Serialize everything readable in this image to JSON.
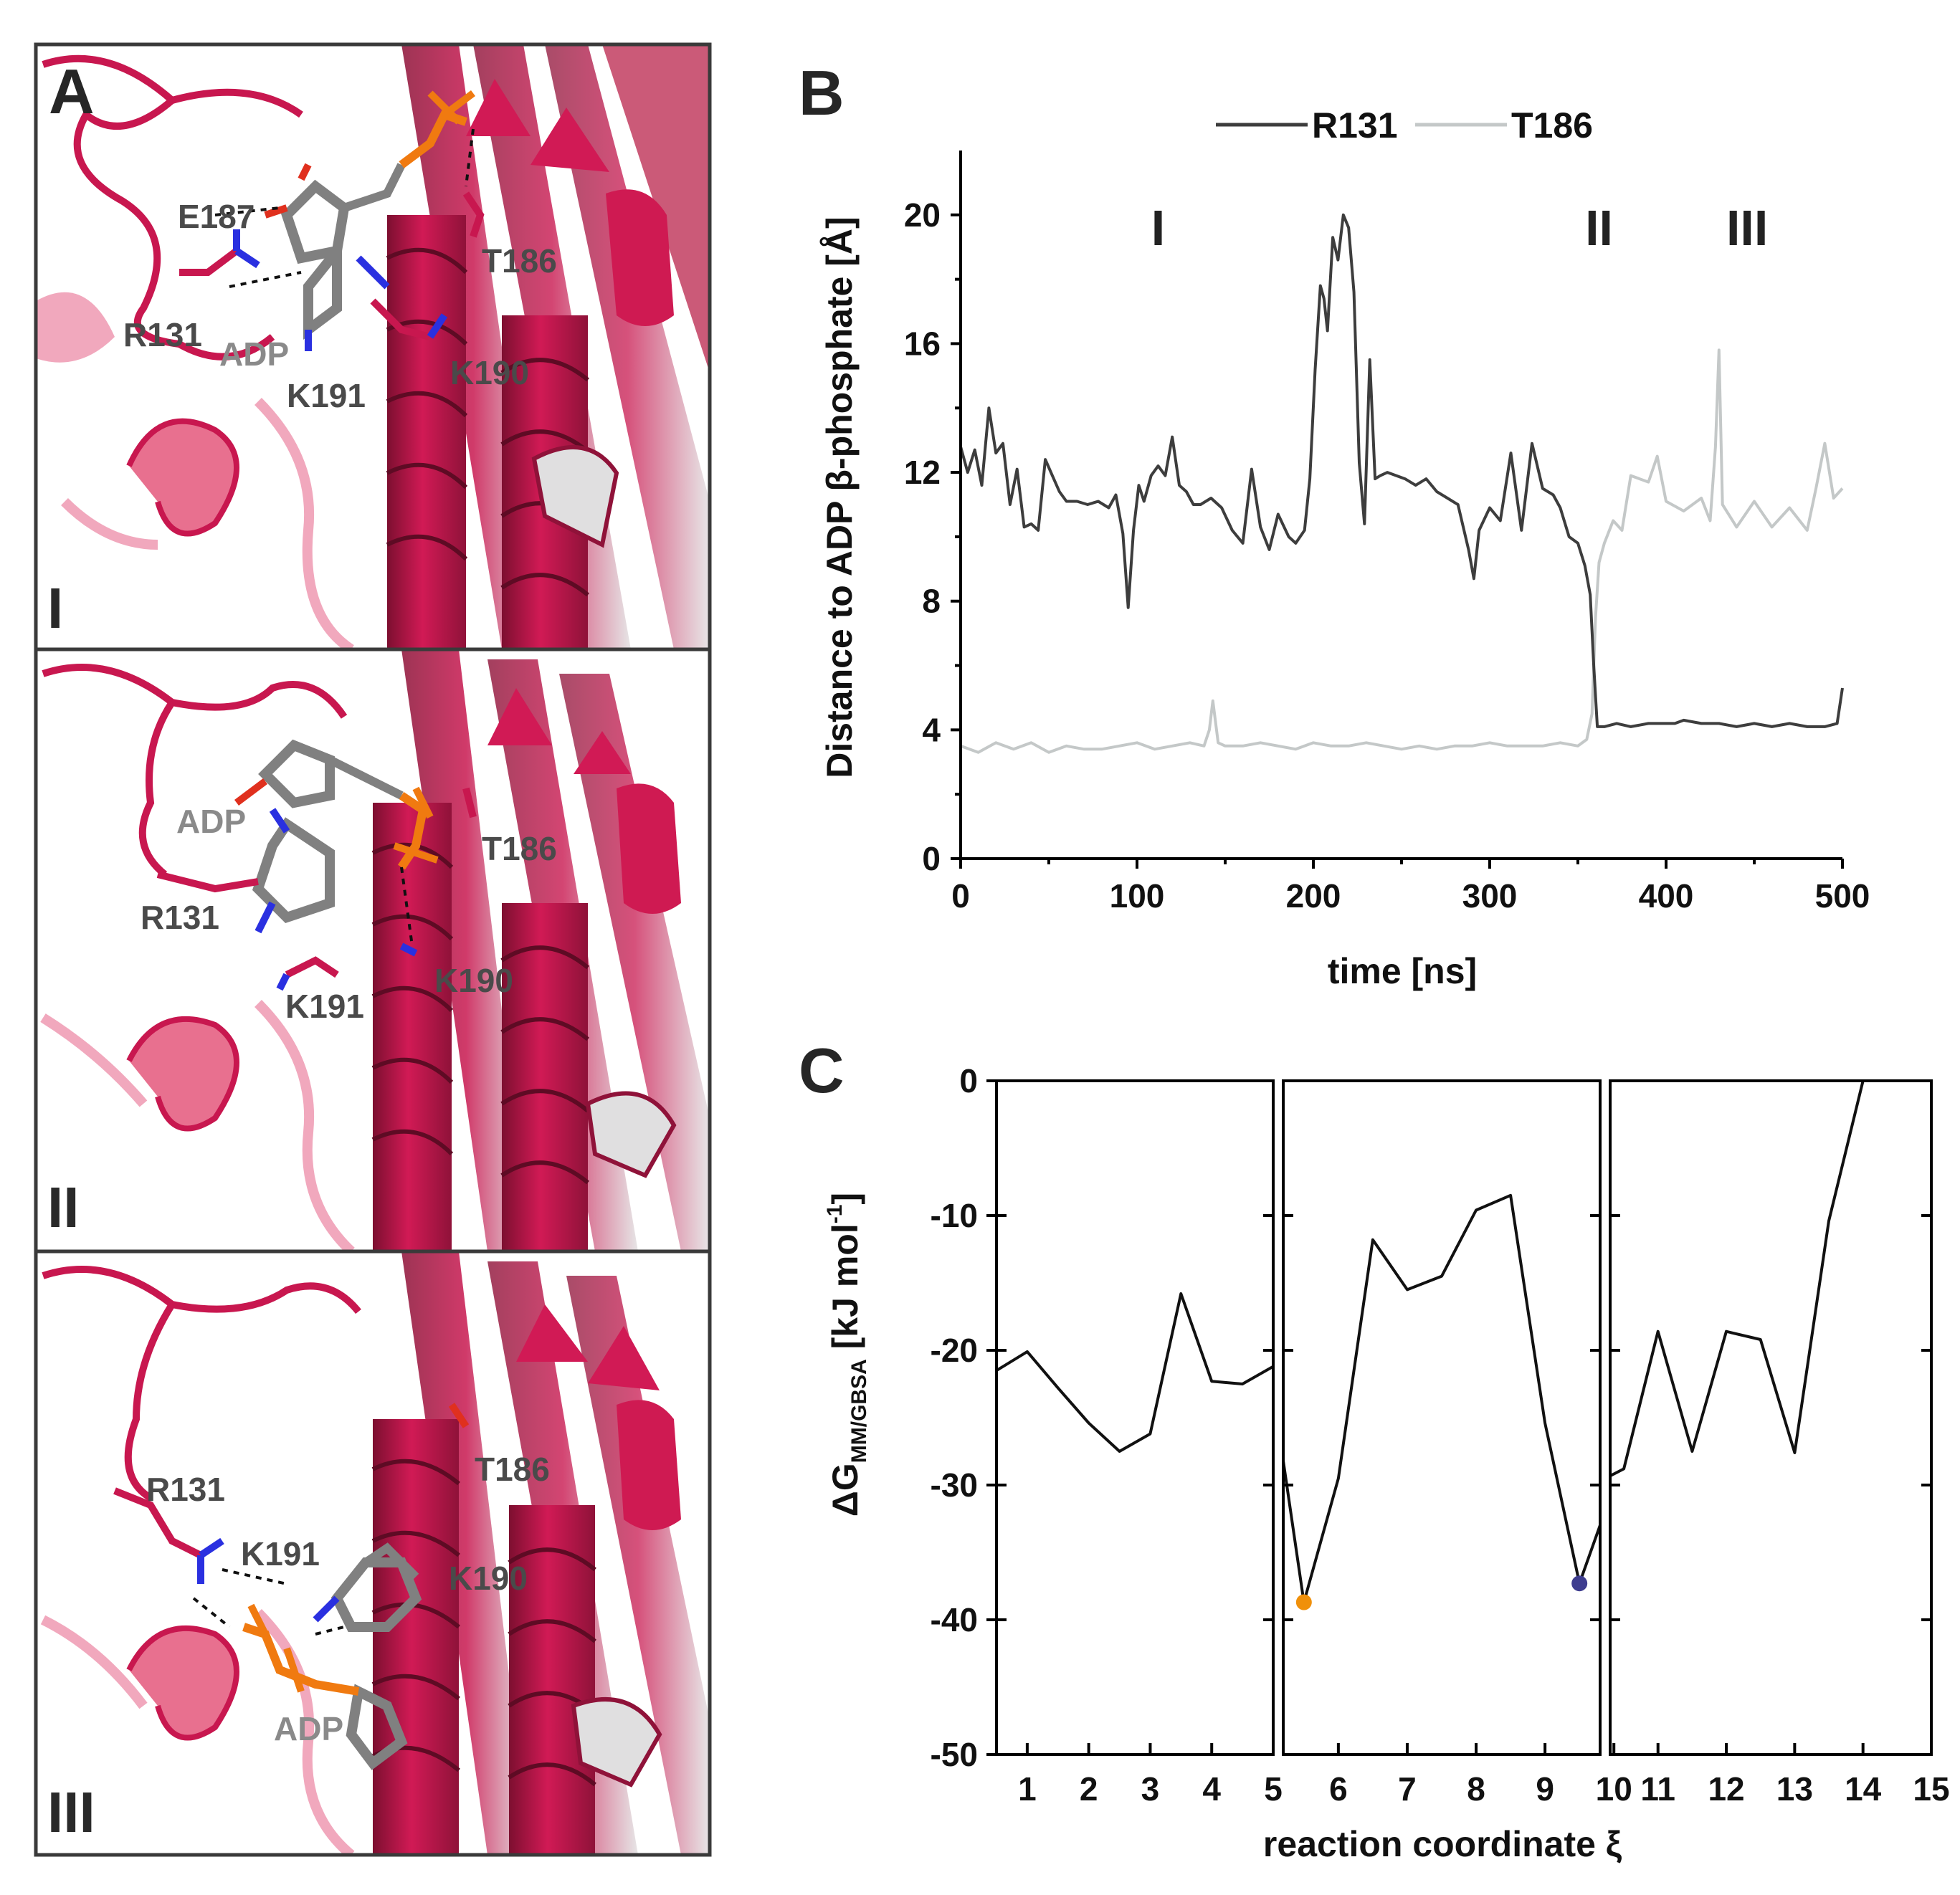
{
  "figure_labels": {
    "A": "A",
    "B": "B",
    "C": "C"
  },
  "panel_a": {
    "panels": [
      {
        "state": "I",
        "residues": [
          "E187",
          "R131",
          "K191",
          "K190",
          "T186"
        ],
        "ligand": "ADP"
      },
      {
        "state": "II",
        "residues": [
          "R131",
          "T186",
          "K191",
          "K190"
        ],
        "ligand": "ADP"
      },
      {
        "state": "III",
        "residues": [
          "R131",
          "T186",
          "K191",
          "K190"
        ],
        "ligand": "ADP"
      }
    ],
    "colors": {
      "protein": "#c8174f",
      "protein_light": "#e8708f",
      "sheet_inner": "#d9d9d9",
      "ligand": "#808080",
      "phosphate": "#f07a10",
      "nitrogen": "#2a30e0"
    }
  },
  "chart_data": [
    {
      "id": "B",
      "type": "line",
      "title": "",
      "xlabel": "time [ns]",
      "ylabel": "Distance to ADP β-phosphate [Å]",
      "xlim": [
        0,
        500
      ],
      "ylim": [
        0,
        22
      ],
      "xticks": [
        0,
        100,
        200,
        300,
        400,
        500
      ],
      "yticks": [
        0,
        4,
        8,
        12,
        16,
        20
      ],
      "regions": [
        {
          "label": "I",
          "x": 112
        },
        {
          "label": "II",
          "x": 362
        },
        {
          "label": "III",
          "x": 446
        }
      ],
      "legend": {
        "position": "top",
        "entries": [
          "R131",
          "T186"
        ]
      },
      "series": [
        {
          "name": "R131",
          "color": "#3d3d3d",
          "x": [
            0,
            4,
            8,
            12,
            16,
            20,
            24,
            28,
            32,
            36,
            40,
            44,
            48,
            52,
            56,
            60,
            66,
            72,
            78,
            84,
            88,
            92,
            95,
            98,
            101,
            104,
            108,
            112,
            116,
            120,
            124,
            128,
            132,
            136,
            142,
            148,
            154,
            160,
            165,
            170,
            175,
            180,
            186,
            190,
            195,
            198,
            201,
            204,
            206,
            208,
            211,
            214,
            217,
            220,
            223,
            226,
            229,
            232,
            235,
            238,
            242,
            247,
            252,
            258,
            264,
            270,
            276,
            282,
            288,
            291,
            294,
            300,
            306,
            312,
            318,
            324,
            330,
            336,
            340,
            345,
            350,
            354,
            357,
            359,
            361,
            365,
            372,
            380,
            390,
            400,
            405,
            410,
            420,
            430,
            440,
            450,
            460,
            470,
            480,
            490,
            497,
            500
          ],
          "values": [
            12.8,
            12.0,
            12.7,
            11.6,
            14.0,
            12.6,
            12.9,
            11.0,
            12.1,
            10.3,
            10.4,
            10.2,
            12.4,
            11.9,
            11.4,
            11.1,
            11.1,
            11.0,
            11.1,
            10.9,
            11.3,
            10.1,
            7.8,
            10.2,
            11.6,
            11.1,
            11.9,
            12.2,
            11.9,
            13.1,
            11.6,
            11.4,
            11.0,
            11.0,
            11.2,
            10.9,
            10.2,
            9.8,
            12.1,
            10.3,
            9.6,
            10.7,
            10.0,
            9.8,
            10.2,
            11.8,
            15.2,
            17.8,
            17.4,
            16.4,
            19.3,
            18.6,
            20.0,
            19.6,
            17.6,
            12.3,
            10.4,
            15.5,
            11.8,
            11.9,
            12.0,
            11.9,
            11.8,
            11.6,
            11.8,
            11.4,
            11.2,
            11.0,
            9.6,
            8.7,
            10.2,
            10.9,
            10.5,
            12.6,
            10.2,
            12.9,
            11.5,
            11.3,
            10.9,
            10.0,
            9.8,
            9.1,
            8.2,
            6.0,
            4.1,
            4.1,
            4.2,
            4.1,
            4.2,
            4.2,
            4.2,
            4.3,
            4.2,
            4.2,
            4.1,
            4.2,
            4.1,
            4.2,
            4.1,
            4.1,
            4.2,
            5.3
          ]
        },
        {
          "name": "T186",
          "color": "#c4c8c8",
          "x": [
            0,
            10,
            20,
            30,
            40,
            50,
            60,
            70,
            80,
            90,
            100,
            110,
            120,
            130,
            138,
            141,
            143,
            146,
            150,
            160,
            170,
            180,
            190,
            200,
            210,
            220,
            230,
            240,
            250,
            260,
            270,
            280,
            290,
            300,
            310,
            320,
            330,
            340,
            350,
            355,
            358,
            360,
            362,
            365,
            370,
            375,
            380,
            390,
            395,
            400,
            410,
            420,
            425,
            428,
            430,
            432,
            440,
            450,
            460,
            470,
            480,
            485,
            490,
            495,
            500
          ],
          "values": [
            3.5,
            3.3,
            3.6,
            3.4,
            3.6,
            3.3,
            3.5,
            3.4,
            3.4,
            3.5,
            3.6,
            3.4,
            3.5,
            3.6,
            3.5,
            4.0,
            4.9,
            3.6,
            3.5,
            3.5,
            3.6,
            3.5,
            3.4,
            3.6,
            3.5,
            3.5,
            3.6,
            3.5,
            3.4,
            3.5,
            3.4,
            3.5,
            3.5,
            3.6,
            3.5,
            3.5,
            3.5,
            3.6,
            3.5,
            3.7,
            4.5,
            7.5,
            9.2,
            9.8,
            10.5,
            10.2,
            11.9,
            11.7,
            12.5,
            11.1,
            10.8,
            11.2,
            10.5,
            12.8,
            15.8,
            11.0,
            10.3,
            11.1,
            10.3,
            10.9,
            10.2,
            11.5,
            12.9,
            11.2,
            11.5
          ]
        }
      ]
    },
    {
      "id": "C",
      "type": "line",
      "title": "",
      "xlabel": "reaction coordinate ξ",
      "ylabel": "ΔG",
      "ylabel_sub": "MM/GBSA",
      "ylabel_unit": " [kJ mol",
      "ylabel_sup": "-1",
      "ylabel_close": "]",
      "ylim": [
        -50,
        0
      ],
      "yticks": [
        0,
        -10,
        -20,
        -30,
        -40,
        -50
      ],
      "panels": [
        {
          "xlim": [
            0.5,
            5.0
          ],
          "xticks": [
            1,
            2,
            3,
            4,
            5
          ]
        },
        {
          "xlim": [
            5.2,
            9.8
          ],
          "xticks": [
            6,
            7,
            8,
            9,
            10
          ]
        },
        {
          "xlim": [
            10.3,
            15.0
          ],
          "xticks": [
            11,
            12,
            13,
            14,
            15
          ]
        }
      ],
      "series": [
        {
          "name": "ΔG",
          "color": "#111111",
          "x": [
            0.5,
            1.0,
            1.5,
            2.0,
            2.5,
            3.0,
            3.5,
            4.0,
            4.5,
            5.0,
            5.5,
            6.0,
            6.5,
            7.0,
            7.5,
            8.0,
            8.5,
            9.0,
            9.5,
            10.0,
            10.5,
            11.0,
            11.5,
            12.0,
            12.5,
            13.0,
            13.5,
            14.0
          ],
          "values": [
            -21.5,
            -20.1,
            -22.8,
            -25.4,
            -27.5,
            -26.2,
            -15.8,
            -22.3,
            -22.5,
            -21.2,
            -38.7,
            -29.5,
            -11.8,
            -15.5,
            -14.5,
            -9.6,
            -8.5,
            -25.4,
            -37.3,
            -30.1,
            -28.8,
            -18.6,
            -27.5,
            -18.6,
            -19.2,
            -27.6,
            -10.4,
            0.0
          ]
        }
      ],
      "markers": [
        {
          "x": 5.5,
          "y": -38.7,
          "color": "#f0900a"
        },
        {
          "x": 9.5,
          "y": -37.3,
          "color": "#3e3d8f"
        }
      ]
    }
  ]
}
